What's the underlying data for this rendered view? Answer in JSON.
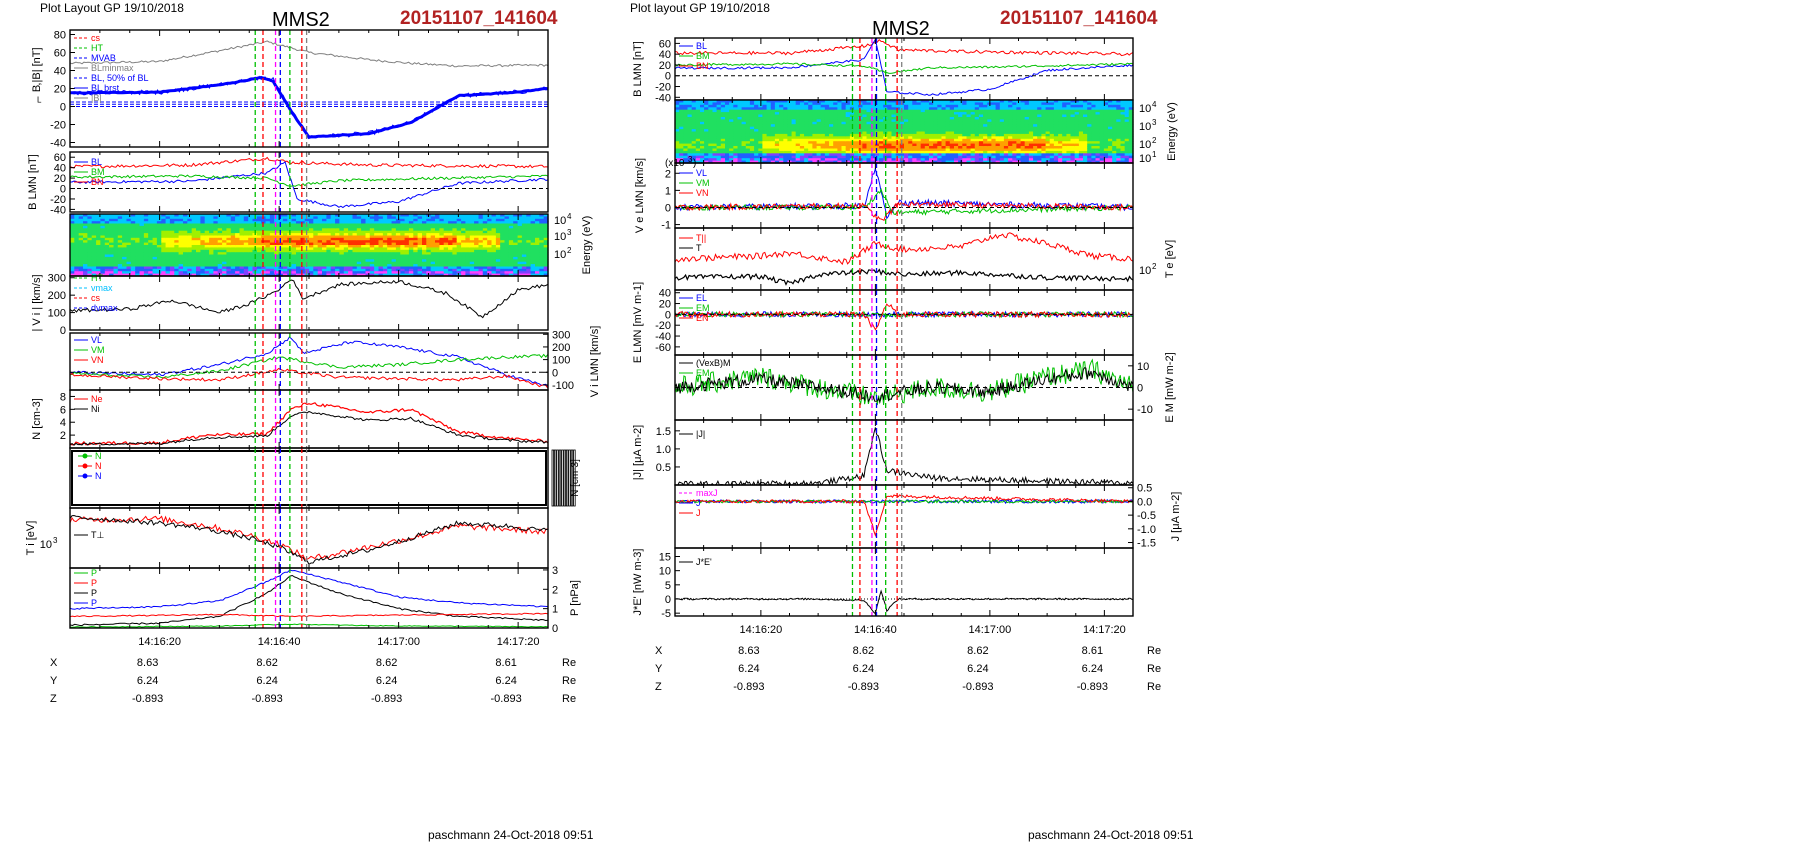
{
  "left": {
    "header": "Plot Layout GP 19/10/2018",
    "spacecraft": "MMS2",
    "event_id": "20151107_141604",
    "footer": "paschmann 24-Oct-2018 09:51"
  },
  "right": {
    "header": "Plot layout GP 19/10/2018",
    "spacecraft": "MMS2",
    "event_id": "20151107_141604",
    "footer": "paschmann 24-Oct-2018 09:51"
  },
  "colors": {
    "red": "#ff0000",
    "green": "#00c000",
    "blue": "#0000ff",
    "black": "#000000",
    "gray": "#808080",
    "magenta": "#ff00ff",
    "cyan": "#00c0ff",
    "event_red": "#b22222"
  },
  "chart_data": [
    {
      "type": "line",
      "title": "MMS2 20151107_141604 (left stack)",
      "time_range": [
        "14:16:05",
        "14:17:25"
      ],
      "time_ticks": [
        "14:16:20",
        "14:16:40",
        "14:17:00",
        "14:17:20"
      ],
      "ephemeris": {
        "rows": [
          {
            "name": "X",
            "values": [
              "8.63",
              "8.62",
              "8.62",
              "8.61"
            ],
            "unit": "Re"
          },
          {
            "name": "Y",
            "values": [
              "6.24",
              "6.24",
              "6.24",
              "6.24"
            ],
            "unit": "Re"
          },
          {
            "name": "Z",
            "values": [
              "-0.893",
              "-0.893",
              "-0.893",
              "-0.893"
            ],
            "unit": "Re"
          }
        ]
      },
      "panels": [
        {
          "ylabel": "B_L,|B| [nT]",
          "yticks": [
            "80",
            "60",
            "40",
            "20",
            "0",
            "-20",
            "-40"
          ],
          "ylim": [
            -45,
            85
          ],
          "legend": [
            "cs",
            "HT",
            "MVAB",
            "BLminmax",
            "BL, 50% of BL",
            "BL brst",
            "|B|"
          ]
        },
        {
          "ylabel": "B_LMN [nT]",
          "yticks": [
            "60",
            "40",
            "20",
            "0",
            "-20",
            "-40"
          ],
          "ylim": [
            -45,
            70
          ],
          "legend": [
            "BL",
            "BM",
            "BN"
          ]
        },
        {
          "ylabel": "Energy (eV)",
          "type": "heatmap",
          "yticks": [
            "10^4",
            "10^3",
            "10^2"
          ]
        },
        {
          "ylabel": "|Vi| [km/s]",
          "yticks": [
            "300",
            "200",
            "100",
            "0"
          ],
          "ylim": [
            0,
            310
          ],
          "legend": [
            "HT",
            "vmax",
            "cs",
            "dvmax"
          ]
        },
        {
          "ylabel": "Vi LMN [km/s]",
          "yticks": [
            "300",
            "200",
            "100",
            "0",
            "-100"
          ],
          "ylim": [
            -140,
            310
          ],
          "legend": [
            "VL",
            "VM",
            "VN"
          ]
        },
        {
          "ylabel": "N [cm^-3]",
          "yticks": [
            "8",
            "6",
            "4",
            "2"
          ],
          "ylim": [
            0,
            9
          ],
          "legend": [
            "Ne",
            "Ni"
          ]
        },
        {
          "ylabel": "N [cm^-3]",
          "legend": [
            "N",
            "N",
            "N"
          ]
        },
        {
          "ylabel": "Ti [eV]",
          "yticks": [
            "10^3"
          ],
          "legend": [
            "T⊥"
          ]
        },
        {
          "ylabel": "P [nPa]",
          "yticks": [
            "3",
            "2",
            "1",
            "0"
          ],
          "ylim": [
            0,
            3.1
          ],
          "legend": [
            "P",
            "P",
            "P",
            "P"
          ]
        }
      ]
    },
    {
      "type": "line",
      "title": "MMS2 20151107_141604 (right stack)",
      "time_range": [
        "14:16:05",
        "14:17:25"
      ],
      "time_ticks": [
        "14:16:20",
        "14:16:40",
        "14:17:00",
        "14:17:20"
      ],
      "ephemeris": {
        "rows": [
          {
            "name": "X",
            "values": [
              "8.63",
              "8.62",
              "8.62",
              "8.61"
            ],
            "unit": "Re"
          },
          {
            "name": "Y",
            "values": [
              "6.24",
              "6.24",
              "6.24",
              "6.24"
            ],
            "unit": "Re"
          },
          {
            "name": "Z",
            "values": [
              "-0.893",
              "-0.893",
              "-0.893",
              "-0.893"
            ],
            "unit": "Re"
          }
        ]
      },
      "panels": [
        {
          "ylabel": "B_LMN [nT]",
          "yticks": [
            "60",
            "40",
            "20",
            "0",
            "-20",
            "-40"
          ],
          "ylim": [
            -45,
            70
          ],
          "legend": [
            "BL",
            "BM",
            "BN"
          ]
        },
        {
          "ylabel": "Energy (eV)",
          "type": "heatmap",
          "yticks": [
            "10^4",
            "10^3",
            "10^2",
            "10^1"
          ]
        },
        {
          "ylabel": "Ve LMN [km/s] (x10^3)",
          "yticks": [
            "2",
            "1",
            "0",
            "-1"
          ],
          "ylim": [
            -1.2,
            2.6
          ],
          "legend": [
            "VL",
            "VM",
            "VN"
          ]
        },
        {
          "ylabel": "Te [eV]",
          "yticks": [
            "10^2"
          ],
          "legend": [
            "T||",
            "T"
          ]
        },
        {
          "ylabel": "E_LMN [mV m^-1]",
          "yticks": [
            "40",
            "20",
            "0",
            "-20",
            "-40",
            "-60"
          ],
          "ylim": [
            -75,
            45
          ],
          "legend": [
            "EL",
            "EM",
            "EN"
          ]
        },
        {
          "ylabel": "E_M [mV m^-1]",
          "yticks": [
            "10",
            "0",
            "-10"
          ],
          "ylim": [
            -15,
            15
          ],
          "legend": [
            "(VexB)M",
            "EM"
          ]
        },
        {
          "ylabel": "|J| [μA m^-2]",
          "yticks": [
            "1.5",
            "1.0",
            "0.5"
          ],
          "ylim": [
            0,
            1.8
          ],
          "legend": [
            "|J|"
          ]
        },
        {
          "ylabel": "J [μA m^-2]",
          "yticks": [
            "0.5",
            "0.0",
            "-0.5",
            "-1.0",
            "-1.5"
          ],
          "ylim": [
            -1.7,
            0.6
          ],
          "legend": [
            "maxJ",
            "J",
            "J"
          ]
        },
        {
          "ylabel": "J*E' [nW m^-3]",
          "yticks": [
            "15",
            "10",
            "5",
            "0",
            "-5"
          ],
          "ylim": [
            -6,
            18
          ],
          "legend": [
            "J*E'"
          ]
        }
      ]
    }
  ]
}
